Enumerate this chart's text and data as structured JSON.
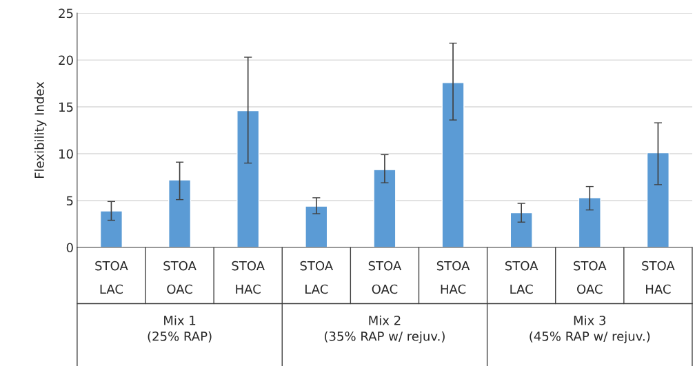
{
  "chart_data": {
    "type": "bar",
    "ylabel": "Flexibility Index",
    "categories": [
      "STOA\nLAC",
      "STOA\nOAC",
      "STOA\nHAC",
      "STOA\nLAC",
      "STOA\nOAC",
      "STOA\nHAC",
      "STOA\nLAC",
      "STOA\nOAC",
      "STOA\nHAC"
    ],
    "values": [
      3.9,
      7.2,
      14.6,
      4.4,
      8.3,
      17.6,
      3.7,
      5.3,
      10.1
    ],
    "errors": [
      [
        2.9,
        4.9
      ],
      [
        5.1,
        9.1
      ],
      [
        9.0,
        20.3
      ],
      [
        3.6,
        5.3
      ],
      [
        6.9,
        9.9
      ],
      [
        13.6,
        21.8
      ],
      [
        2.7,
        4.7
      ],
      [
        4.0,
        6.5
      ],
      [
        6.7,
        13.3
      ]
    ],
    "color": "#5b9bd5",
    "ylim": [
      0,
      25
    ],
    "yticks": [
      0,
      5,
      10,
      15,
      20,
      25
    ],
    "grid": "y",
    "annotations": [
      "Mix 1\n(25% RAP)",
      "Mix 2\n(35% RAP w/ rejuv.)",
      "Mix 3\n(45% RAP w/ rejuv.)"
    ]
  }
}
